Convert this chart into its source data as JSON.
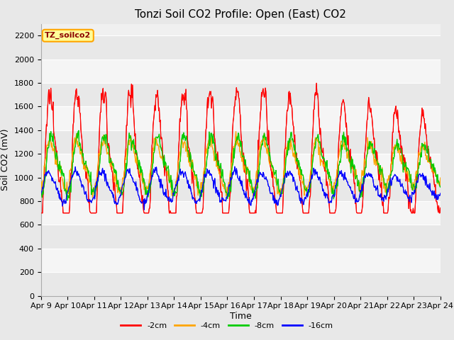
{
  "title": "Tonzi Soil CO2 Profile: Open (East) CO2",
  "ylabel": "Soil CO2 (mV)",
  "xlabel": "Time",
  "annotation": "TZ_soilco2",
  "ylim": [
    0,
    2300
  ],
  "yticks": [
    0,
    200,
    400,
    600,
    800,
    1000,
    1200,
    1400,
    1600,
    1800,
    2000,
    2200
  ],
  "xtick_labels": [
    "Apr 9",
    "Apr 10",
    "Apr 11",
    "Apr 12",
    "Apr 13",
    "Apr 14",
    "Apr 15",
    "Apr 16",
    "Apr 17",
    "Apr 18",
    "Apr 19",
    "Apr 20",
    "Apr 21",
    "Apr 22",
    "Apr 23",
    "Apr 24"
  ],
  "series_colors": [
    "#ff0000",
    "#ffa500",
    "#00cc00",
    "#0000ff"
  ],
  "series_labels": [
    "-2cm",
    "-4cm",
    "-8cm",
    "-16cm"
  ],
  "background_color": "#e8e8e8",
  "plot_bg_color": "#f0f0f0",
  "grid_color": "#ffffff",
  "title_fontsize": 11,
  "label_fontsize": 9,
  "tick_fontsize": 8,
  "annotation_color": "#8b0000",
  "annotation_bg": "#ffff99",
  "annotation_edge": "#ffa500"
}
